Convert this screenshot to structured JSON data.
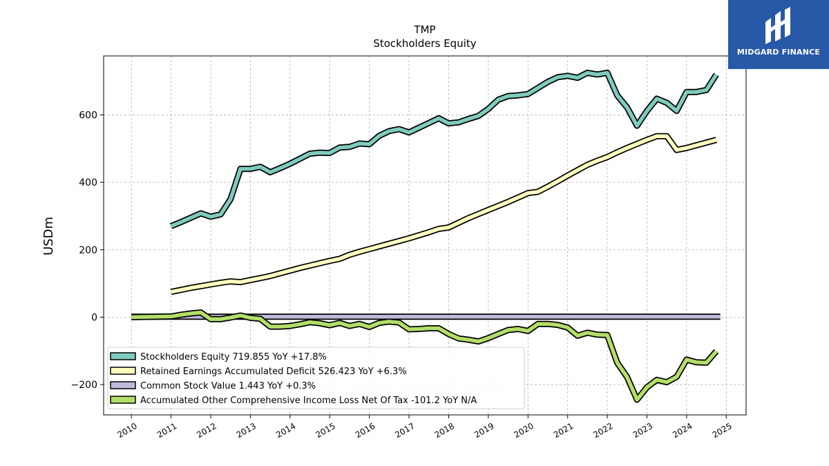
{
  "brand": {
    "name": "MIDGARD FINANCE",
    "bg_color": "#2858a8"
  },
  "chart_data": {
    "type": "line",
    "title": "TMP",
    "subtitle": "Stockholders  Equity",
    "xlabel": "",
    "ylabel": "USDm",
    "xlim": [
      2009.3,
      2025.5
    ],
    "ylim": [
      -290,
      775
    ],
    "yticks": [
      -200,
      0,
      200,
      400,
      600
    ],
    "ytick_labels": [
      "−200",
      "0",
      "200",
      "400",
      "600"
    ],
    "xticks": [
      2010,
      2011,
      2012,
      2013,
      2014,
      2015,
      2016,
      2017,
      2018,
      2019,
      2020,
      2021,
      2022,
      2023,
      2024,
      2025
    ],
    "xtick_labels": [
      "2010",
      "2011",
      "2012",
      "2013",
      "2014",
      "2015",
      "2016",
      "2017",
      "2018",
      "2019",
      "2020",
      "2021",
      "2022",
      "2023",
      "2024",
      "2025"
    ],
    "grid": true,
    "legend_position": "bottom-left",
    "series": [
      {
        "name": "Stockholders Equity",
        "legend_label": "Stockholders Equity  719.855 YoY +17.8%",
        "color": "#7fcbbd",
        "x": [
          2011.0,
          2011.25,
          2011.5,
          2011.75,
          2012.0,
          2012.25,
          2012.5,
          2012.75,
          2013.0,
          2013.25,
          2013.5,
          2013.75,
          2014.0,
          2014.25,
          2014.5,
          2014.75,
          2015.0,
          2015.25,
          2015.5,
          2015.75,
          2016.0,
          2016.25,
          2016.5,
          2016.75,
          2017.0,
          2017.25,
          2017.5,
          2017.75,
          2018.0,
          2018.25,
          2018.5,
          2018.75,
          2019.0,
          2019.25,
          2019.5,
          2019.75,
          2020.0,
          2020.25,
          2020.5,
          2020.75,
          2021.0,
          2021.25,
          2021.5,
          2021.75,
          2022.0,
          2022.25,
          2022.5,
          2022.75,
          2023.0,
          2023.25,
          2023.5,
          2023.75,
          2024.0,
          2024.25,
          2024.5,
          2024.75
        ],
        "values": [
          270,
          282,
          295,
          308,
          298,
          305,
          350,
          440,
          440,
          446,
          430,
          442,
          455,
          470,
          485,
          488,
          487,
          503,
          505,
          515,
          513,
          538,
          552,
          558,
          548,
          562,
          576,
          590,
          575,
          578,
          588,
          597,
          618,
          645,
          656,
          658,
          662,
          680,
          698,
          712,
          716,
          710,
          725,
          720,
          725,
          658,
          622,
          568,
          612,
          648,
          636,
          612,
          668,
          668,
          674,
          720
        ]
      },
      {
        "name": "Retained Earnings Accumulated Deficit",
        "legend_label": "Retained Earnings Accumulated Deficit  526.423 YoY +6.3%",
        "color": "#ffffbf",
        "x": [
          2011.0,
          2011.25,
          2011.5,
          2011.75,
          2012.0,
          2012.25,
          2012.5,
          2012.75,
          2013.0,
          2013.25,
          2013.5,
          2013.75,
          2014.0,
          2014.25,
          2014.5,
          2014.75,
          2015.0,
          2015.25,
          2015.5,
          2015.75,
          2016.0,
          2016.25,
          2016.5,
          2016.75,
          2017.0,
          2017.25,
          2017.5,
          2017.75,
          2018.0,
          2018.25,
          2018.5,
          2018.75,
          2019.0,
          2019.25,
          2019.5,
          2019.75,
          2020.0,
          2020.25,
          2020.5,
          2020.75,
          2021.0,
          2021.25,
          2021.5,
          2021.75,
          2022.0,
          2022.25,
          2022.5,
          2022.75,
          2023.0,
          2023.25,
          2023.5,
          2023.75,
          2024.0,
          2024.25,
          2024.5,
          2024.75
        ],
        "values": [
          75,
          81,
          87,
          92,
          97,
          102,
          106,
          104,
          110,
          116,
          122,
          130,
          138,
          146,
          153,
          160,
          167,
          173,
          185,
          194,
          202,
          210,
          218,
          226,
          234,
          243,
          252,
          262,
          266,
          280,
          294,
          306,
          318,
          330,
          342,
          355,
          368,
          372,
          387,
          403,
          420,
          436,
          452,
          464,
          475,
          489,
          502,
          514,
          526,
          537,
          537,
          496,
          502,
          510,
          518,
          526
        ]
      },
      {
        "name": "Common Stock Value",
        "legend_label": "Common Stock Value  1.443 YoY +0.3%",
        "color": "#bebada",
        "x": [
          2010.0,
          2024.85
        ],
        "values": [
          1.44,
          1.443
        ]
      },
      {
        "name": "Accumulated Other Comprehensive Income Loss Net Of Tax",
        "legend_label": "Accumulated Other Comprehensive Income Loss Net Of Tax  -101.2 YoY N/A",
        "color": "#b3de69",
        "x": [
          2010.0,
          2010.5,
          2011.0,
          2011.25,
          2011.5,
          2011.75,
          2012.0,
          2012.25,
          2012.5,
          2012.75,
          2013.0,
          2013.25,
          2013.5,
          2013.75,
          2014.0,
          2014.25,
          2014.5,
          2014.75,
          2015.0,
          2015.25,
          2015.5,
          2015.75,
          2016.0,
          2016.25,
          2016.5,
          2016.75,
          2017.0,
          2017.25,
          2017.5,
          2017.75,
          2018.0,
          2018.25,
          2018.5,
          2018.75,
          2019.0,
          2019.25,
          2019.5,
          2019.75,
          2020.0,
          2020.25,
          2020.5,
          2020.75,
          2021.0,
          2021.25,
          2021.5,
          2021.75,
          2022.0,
          2022.25,
          2022.5,
          2022.75,
          2023.0,
          2023.25,
          2023.5,
          2023.75,
          2024.0,
          2024.25,
          2024.5,
          2024.75
        ],
        "values": [
          0,
          1,
          2,
          7,
          11,
          14,
          -6,
          -6,
          -1,
          5,
          -2,
          -5,
          -28,
          -28,
          -26,
          -21,
          -15,
          -18,
          -24,
          -17,
          -26,
          -20,
          -29,
          -17,
          -13,
          -16,
          -36,
          -35,
          -33,
          -33,
          -50,
          -63,
          -67,
          -72,
          -62,
          -50,
          -38,
          -35,
          -41,
          -20,
          -20,
          -23,
          -31,
          -55,
          -46,
          -52,
          -53,
          -135,
          -178,
          -245,
          -208,
          -186,
          -193,
          -177,
          -126,
          -134,
          -135,
          -101
        ]
      }
    ]
  }
}
